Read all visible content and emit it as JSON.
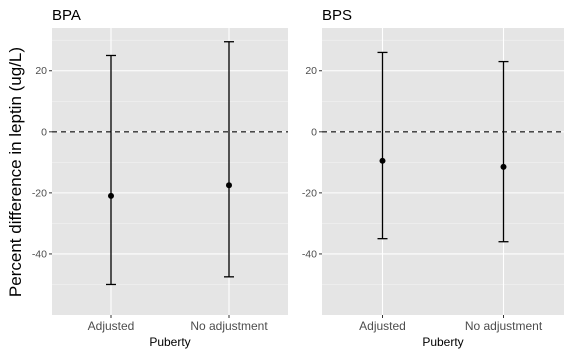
{
  "chart_data": {
    "type": "errorbar",
    "ylabel": "Percent difference in leptin (ug/L)",
    "ylim": [
      -60,
      34
    ],
    "y_ticks": [
      20,
      0,
      -20,
      -40
    ],
    "y_tick_labels": [
      "20",
      "0",
      "-20",
      "-40"
    ],
    "reference_line": 0,
    "grid": true,
    "panels": [
      {
        "title": "BPA",
        "xlabel": "Puberty",
        "categories": [
          "Adjusted",
          "No adjustment"
        ],
        "estimates": [
          -21,
          -17.5
        ],
        "lower": [
          -50,
          -47.5
        ],
        "upper": [
          25,
          29.5
        ]
      },
      {
        "title": "BPS",
        "xlabel": "Puberty",
        "categories": [
          "Adjusted",
          "No adjustment"
        ],
        "estimates": [
          -9.5,
          -11.5
        ],
        "lower": [
          -35,
          -36
        ],
        "upper": [
          26,
          23
        ]
      }
    ]
  }
}
